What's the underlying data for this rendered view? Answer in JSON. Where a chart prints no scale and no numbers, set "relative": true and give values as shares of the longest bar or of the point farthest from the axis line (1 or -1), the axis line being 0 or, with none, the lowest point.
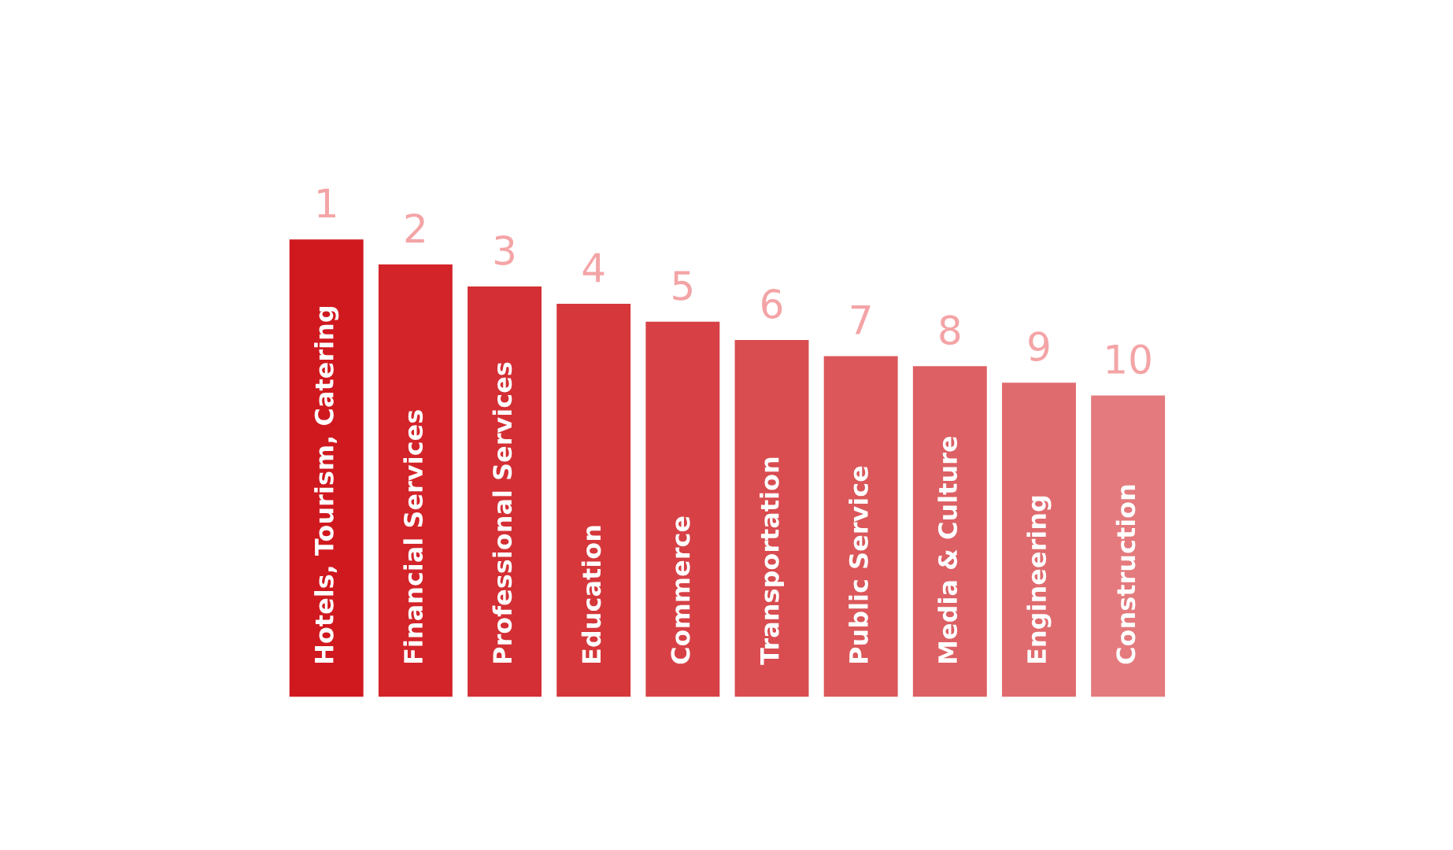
{
  "chart_data": {
    "type": "bar",
    "relative": true,
    "categories": [
      "Hotels, Tourism, Catering",
      "Financial Services",
      "Professional Services",
      "Education",
      "Commerce",
      "Transportation",
      "Public Service",
      "Media & Culture",
      "Engineering",
      "Construction"
    ],
    "values": [
      1,
      0.945,
      0.897,
      0.859,
      0.82,
      0.78,
      0.745,
      0.723,
      0.687,
      0.659
    ],
    "colors": [
      "#d0191f",
      "#d3242a",
      "#d42f34",
      "#d5373b",
      "#d74146",
      "#d94c50",
      "#db575a",
      "#dd6064",
      "#e06b6e",
      "#e47a7d"
    ],
    "annotations": [
      {
        "text": "1",
        "x": "Hotels, Tourism, Catering",
        "y": 1
      },
      {
        "text": "2",
        "x": "Financial Services",
        "y": 0.945
      },
      {
        "text": "3",
        "x": "Professional Services",
        "y": 0.897
      },
      {
        "text": "4",
        "x": "Education",
        "y": 0.859
      },
      {
        "text": "5",
        "x": "Commerce",
        "y": 0.82
      },
      {
        "text": "6",
        "x": "Transportation",
        "y": 0.78
      },
      {
        "text": "7",
        "x": "Public Service",
        "y": 0.745
      },
      {
        "text": "8",
        "x": "Media & Culture",
        "y": 0.723
      },
      {
        "text": "9",
        "x": "Engineering",
        "y": 0.687
      },
      {
        "text": "10",
        "x": "Construction",
        "y": 0.659
      }
    ]
  }
}
